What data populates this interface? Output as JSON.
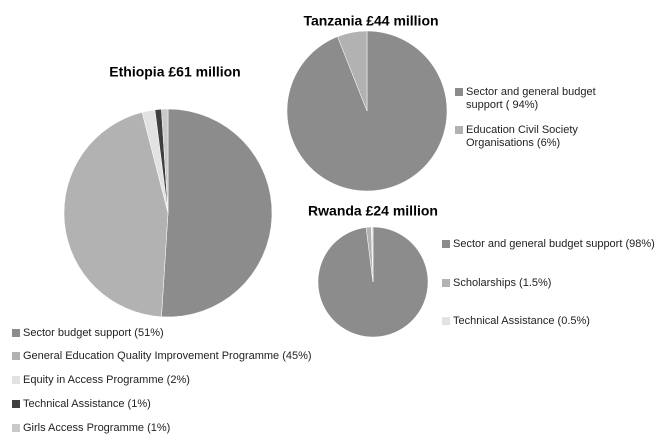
{
  "chart_data": [
    {
      "type": "pie",
      "title": "Ethiopia £61 million",
      "categories": [
        "Sector budget support (51%)",
        "General Education Quality Improvement Programme (45%)",
        "Equity in Access Programme (2%)",
        "Technical Assistance (1%)",
        "Girls Access Programme (1%)"
      ],
      "values": [
        51,
        45,
        2,
        1,
        1
      ],
      "colors": [
        "#8c8c8c",
        "#b2b2b2",
        "#e2e2e2",
        "#3f3f3f",
        "#c9c9c9"
      ]
    },
    {
      "type": "pie",
      "title": "Tanzania £44 million",
      "categories": [
        "Sector and general budget support ( 94%)",
        "Education Civil Society Organisations (6%)"
      ],
      "values": [
        94,
        6
      ],
      "colors": [
        "#8c8c8c",
        "#b2b2b2"
      ]
    },
    {
      "type": "pie",
      "title": "Rwanda £24 million",
      "categories": [
        "Sector and general budget support (98%)",
        "Scholarships (1.5%)",
        "Technical Assistance (0.5%)"
      ],
      "values": [
        98,
        1.5,
        0.5
      ],
      "colors": [
        "#8c8c8c",
        "#b2b2b2",
        "#e2e2e2"
      ]
    }
  ]
}
